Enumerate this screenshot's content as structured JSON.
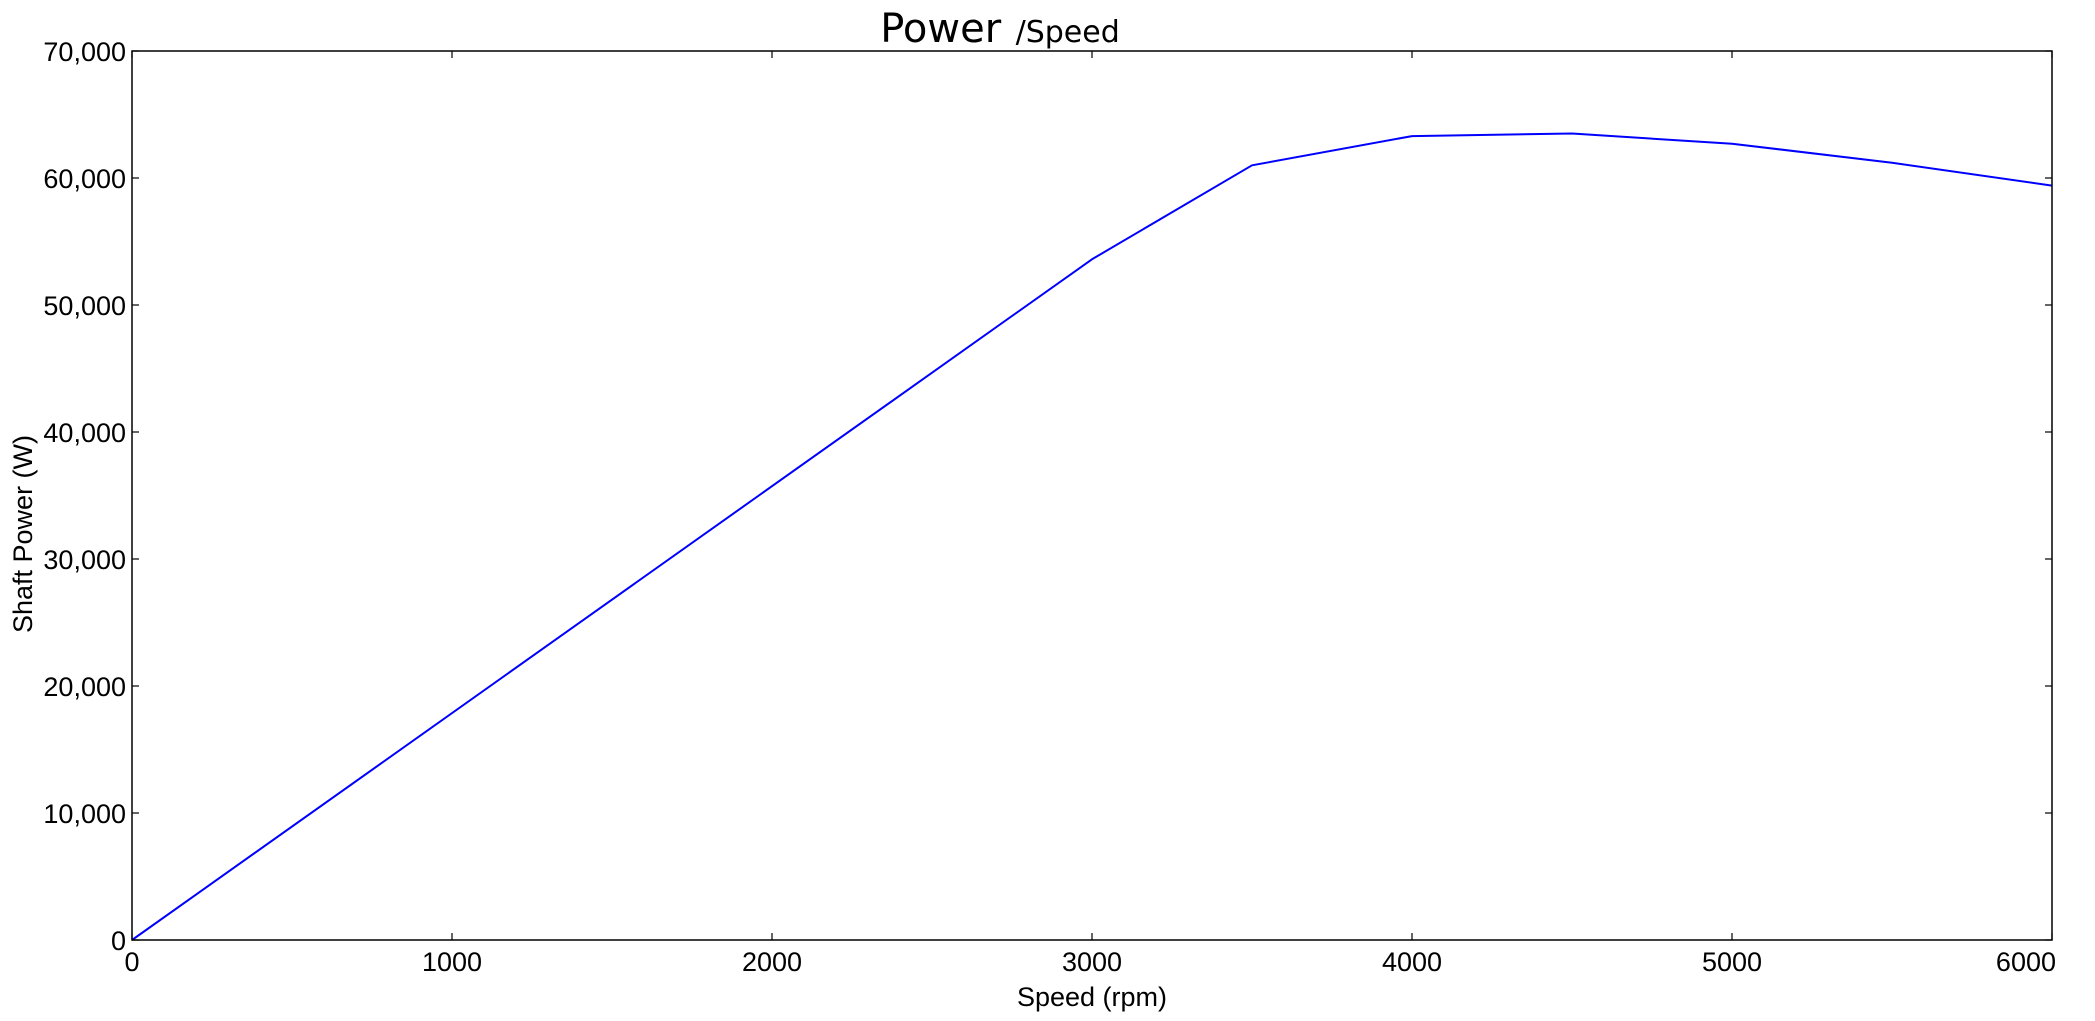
{
  "chart_data": {
    "type": "line",
    "title": "Power",
    "subtitle": "/Speed",
    "xlabel": "Speed  (rpm)",
    "ylabel": "Shaft Power  (W)",
    "xlim": [
      0,
      6000
    ],
    "ylim": [
      0,
      70000
    ],
    "x_ticks": [
      0,
      1000,
      2000,
      3000,
      4000,
      5000,
      6000
    ],
    "x_tick_labels": [
      "0",
      "1000",
      "2000",
      "3000",
      "4000",
      "5000",
      "6000"
    ],
    "y_ticks": [
      0,
      10000,
      20000,
      30000,
      40000,
      50000,
      60000,
      70000
    ],
    "y_tick_labels": [
      "0",
      "10,000",
      "20,000",
      "30,000",
      "40,000",
      "50,000",
      "60,000",
      "70,000"
    ],
    "grid": false,
    "legend": "none",
    "line_color": "#0000ff",
    "series": [
      {
        "x": [
          0,
          3000,
          3500,
          4000,
          4500,
          5000,
          5500,
          6000
        ],
        "y": [
          0,
          53600,
          61000,
          63300,
          63500,
          62700,
          61200,
          59400
        ]
      }
    ]
  }
}
